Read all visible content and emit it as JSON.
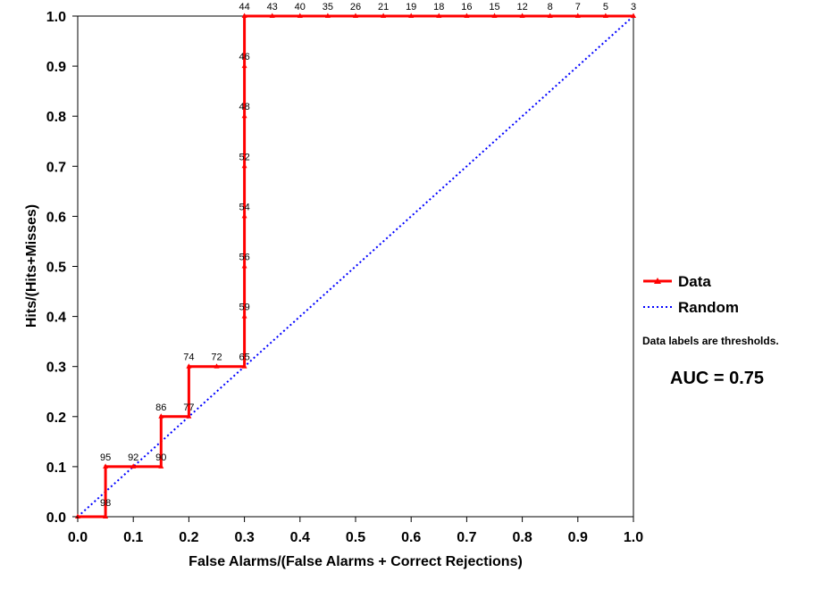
{
  "chart_data": {
    "type": "line",
    "xlabel": "False Alarms/(False Alarms + Correct Rejections)",
    "ylabel": "Hits/(Hits+Misses)",
    "xlim": [
      0,
      1
    ],
    "ylim": [
      0,
      1
    ],
    "x_ticks": [
      "0.0",
      "0.1",
      "0.2",
      "0.3",
      "0.4",
      "0.5",
      "0.6",
      "0.7",
      "0.8",
      "0.9",
      "1.0"
    ],
    "y_ticks": [
      "0.0",
      "0.1",
      "0.2",
      "0.3",
      "0.4",
      "0.5",
      "0.6",
      "0.7",
      "0.8",
      "0.9",
      "1.0"
    ],
    "grid": false,
    "legend_position": "right",
    "series": [
      {
        "name": "Data",
        "color": "#ff0000",
        "marker": "triangle",
        "x": [
          0.0,
          0.05,
          0.05,
          0.1,
          0.15,
          0.15,
          0.2,
          0.2,
          0.25,
          0.3,
          0.3,
          0.3,
          0.3,
          0.3,
          0.3,
          0.3,
          0.3,
          0.35,
          0.4,
          0.45,
          0.5,
          0.55,
          0.6,
          0.65,
          0.7,
          0.75,
          0.8,
          0.85,
          0.9,
          0.95,
          1.0
        ],
        "y": [
          0.0,
          0.0,
          0.1,
          0.1,
          0.1,
          0.2,
          0.2,
          0.3,
          0.3,
          0.3,
          0.4,
          0.5,
          0.6,
          0.7,
          0.8,
          0.9,
          1.0,
          1.0,
          1.0,
          1.0,
          1.0,
          1.0,
          1.0,
          1.0,
          1.0,
          1.0,
          1.0,
          1.0,
          1.0,
          1.0,
          1.0
        ],
        "labels": [
          "",
          "98",
          "95",
          "92",
          "90",
          "86",
          "77",
          "74",
          "72",
          "65",
          "59",
          "56",
          "54",
          "52",
          "48",
          "46",
          "44",
          "43",
          "40",
          "35",
          "26",
          "21",
          "19",
          "18",
          "16",
          "15",
          "12",
          "8",
          "7",
          "5",
          "3"
        ]
      },
      {
        "name": "Random",
        "color": "#0000ff",
        "style": "dotted",
        "x": [
          0,
          1
        ],
        "y": [
          0,
          1
        ]
      }
    ],
    "annotations": {
      "note": "Data labels are thresholds.",
      "auc": "AUC = 0.75"
    }
  }
}
